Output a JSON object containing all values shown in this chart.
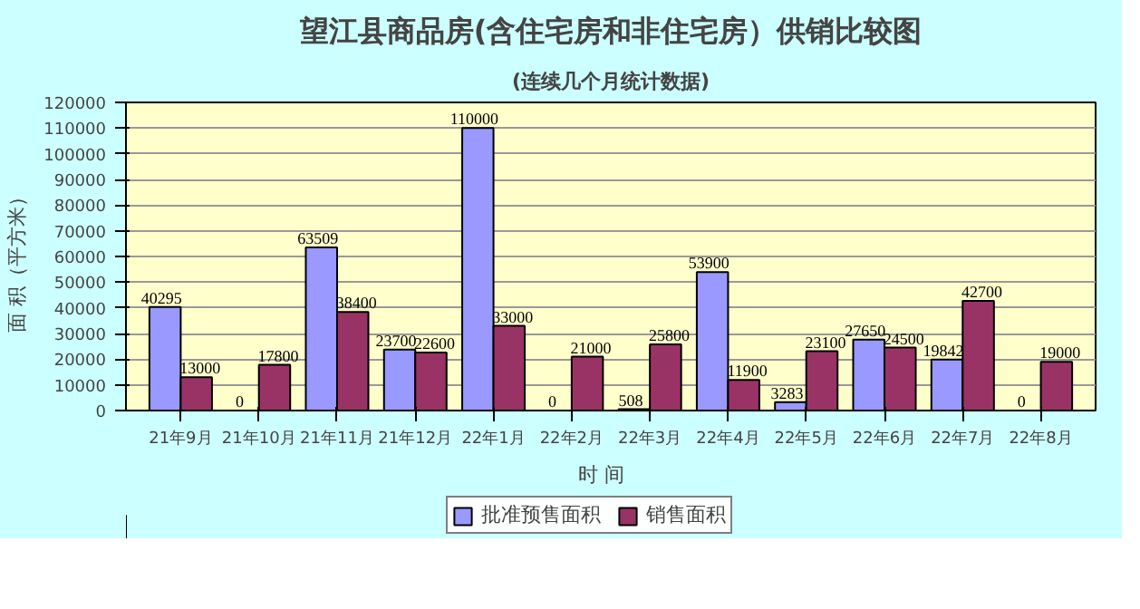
{
  "chart_data": {
    "type": "bar",
    "title": "望江县商品房(含住宅房和非住宅房）供销比较图",
    "subtitle": "(连续几个月统计数据)",
    "xlabel": "时    间",
    "ylabel": "面  积（平方米）",
    "categories": [
      "21年9月",
      "21年10月",
      "21年11月",
      "21年12月",
      "22年1月",
      "22年2月",
      "22年3月",
      "22年4月",
      "22年5月",
      "22年6月",
      "22年7月",
      "22年8月"
    ],
    "series": [
      {
        "name": "批准预售面积",
        "color": "#9999ff",
        "values": [
          40295,
          0,
          63509,
          23700,
          110000,
          0,
          508,
          53900,
          3283,
          27650,
          19842,
          0
        ]
      },
      {
        "name": "销售面积",
        "color": "#993366",
        "values": [
          13000,
          17800,
          38400,
          22600,
          33000,
          21000,
          25800,
          11900,
          23100,
          24500,
          42700,
          19000
        ]
      }
    ],
    "ylim": [
      0,
      120000
    ],
    "yticks": [
      0,
      10000,
      20000,
      30000,
      40000,
      50000,
      60000,
      70000,
      80000,
      90000,
      100000,
      110000,
      120000
    ],
    "grid": "y",
    "legend": "bottom",
    "data_labels": true
  }
}
